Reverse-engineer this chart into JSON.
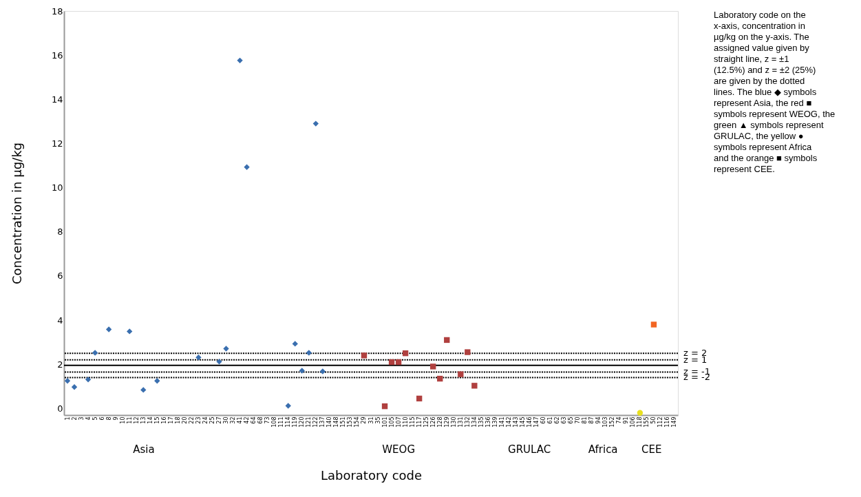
{
  "chart_data": {
    "type": "scatter",
    "xlabel": "Laboratory code",
    "ylabel": "Concentration in µg/kg",
    "categories": [
      "1",
      "2",
      "3",
      "4",
      "5",
      "6",
      "8",
      "9",
      "10",
      "11",
      "12",
      "13",
      "14",
      "15",
      "16",
      "17",
      "18",
      "20",
      "22",
      "23",
      "24",
      "25",
      "27",
      "30",
      "32",
      "41",
      "42",
      "64",
      "68",
      "73",
      "108",
      "111",
      "114",
      "119",
      "120",
      "121",
      "122",
      "137",
      "140",
      "148",
      "151",
      "153",
      "154",
      "29",
      "31",
      "35",
      "101",
      "105",
      "107",
      "110",
      "115",
      "117",
      "125",
      "126",
      "128",
      "129",
      "130",
      "131",
      "132",
      "134",
      "135",
      "136",
      "139",
      "141",
      "142",
      "143",
      "145",
      "146",
      "147",
      "60",
      "61",
      "62",
      "63",
      "65",
      "70",
      "81",
      "87",
      "94",
      "103",
      "152",
      "74",
      "91",
      "106",
      "118",
      "155",
      "50",
      "112",
      "116",
      "149"
    ],
    "ylim": [
      -0.3,
      18
    ],
    "yticks": [
      0,
      2,
      4,
      6,
      8,
      10,
      12,
      14,
      16,
      18
    ],
    "grid": false,
    "series": [
      {
        "color": "#3a6faf",
        "marker": "diamond",
        "x": [
          "1",
          "2",
          "4",
          "5",
          "8",
          "11",
          "13",
          "15",
          "23",
          "27",
          "30",
          "41",
          "42",
          "114",
          "119",
          "120",
          "121",
          "122",
          "137"
        ],
        "values": [
          1.25,
          0.97,
          1.31,
          2.52,
          3.58,
          3.49,
          0.84,
          1.25,
          2.31,
          2.12,
          2.71,
          15.76,
          10.93,
          0.12,
          2.93,
          1.71,
          2.52,
          12.9,
          1.68
        ]
      },
      {
        "color": "#b0403f",
        "marker": "square",
        "x": [
          "29",
          "101",
          "105",
          "107",
          "110",
          "117",
          "126",
          "128",
          "129",
          "131",
          "132",
          "134"
        ],
        "values": [
          2.4,
          0.1,
          2.1,
          2.1,
          2.5,
          0.45,
          1.9,
          1.35,
          3.1,
          1.55,
          2.55,
          1.03
        ]
      },
      {
        "color": "#e8e020",
        "marker": "circle",
        "x": [
          "118"
        ],
        "values": [
          -0.2
        ]
      },
      {
        "color": "#f26522",
        "marker": "square",
        "x": [
          "50"
        ],
        "values": [
          3.8
        ]
      }
    ],
    "ref_lines": [
      {
        "axis": "y",
        "value": 2.5,
        "line_style": "dotted"
      },
      {
        "axis": "y",
        "value": 2.2,
        "line_style": "dotted"
      },
      {
        "axis": "y",
        "value": 1.95,
        "line_style": "solid"
      },
      {
        "axis": "y",
        "value": 1.65,
        "line_style": "dotted"
      },
      {
        "axis": "y",
        "value": 1.4,
        "line_style": "dotted"
      }
    ],
    "annotations": [
      "Asia",
      "WEOG",
      "GRULAC",
      "Africa",
      "CEE",
      "z = 2",
      "z = 1",
      "z = -1",
      "z = -2",
      "Laboratory code on the x-axis, concentration in µg/kg on the y-axis. The assigned value given by straight line, z = ±1 (12.5%) and z = ±2 (25%) are given by the dotted lines. The blue ◆ symbols represent Asia, the red ■ symbols represent WEOG, the green ▲ symbols represent GRULAC, the yellow ● symbols represent Africa and the orange ■ symbols represent CEE."
    ]
  }
}
